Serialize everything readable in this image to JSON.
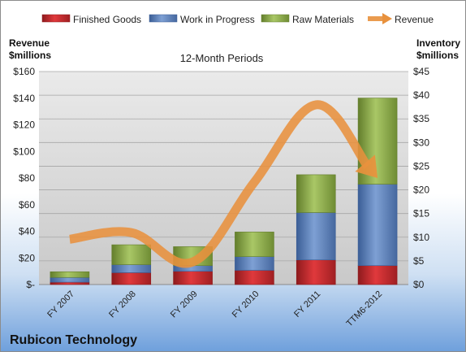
{
  "chart_data": {
    "type": "bar",
    "title": "12-Month Periods",
    "company": "Rubicon Technology",
    "categories": [
      "FY 2007",
      "FY 2008",
      "FY 2009",
      "FY 2010",
      "FY 2011",
      "TTM6-2012"
    ],
    "stacked": true,
    "series": [
      {
        "name": "Finished Goods",
        "axis": "right",
        "color": "#c0282c",
        "values": [
          0.5,
          2.5,
          2.8,
          3.0,
          5.2,
          4.0
        ]
      },
      {
        "name": "Work in Progress",
        "axis": "right",
        "color": "#5a80bd",
        "values": [
          1.0,
          1.7,
          1.2,
          2.9,
          10.0,
          17.2
        ]
      },
      {
        "name": "Raw Materials",
        "axis": "right",
        "color": "#8cae46",
        "values": [
          1.2,
          4.2,
          4.0,
          5.2,
          8.0,
          18.2
        ]
      },
      {
        "name": "Revenue",
        "type": "line",
        "axis": "left",
        "color": "#e8913d",
        "values": [
          34,
          39,
          17,
          77,
          135,
          80
        ]
      }
    ],
    "ylabel_left": [
      "Revenue",
      "$millions"
    ],
    "ylabel_right": [
      "Inventory",
      "$millions"
    ],
    "ylim_left": [
      0,
      160
    ],
    "ylim_right": [
      0,
      45
    ],
    "yticks_left": [
      "$-",
      "$20",
      "$40",
      "$60",
      "$80",
      "$100",
      "$120",
      "$140",
      "$160"
    ],
    "yticks_right": [
      "$0",
      "$5",
      "$10",
      "$15",
      "$20",
      "$25",
      "$30",
      "$35",
      "$40",
      "$45"
    ],
    "legend_position": "top",
    "grid": true
  }
}
